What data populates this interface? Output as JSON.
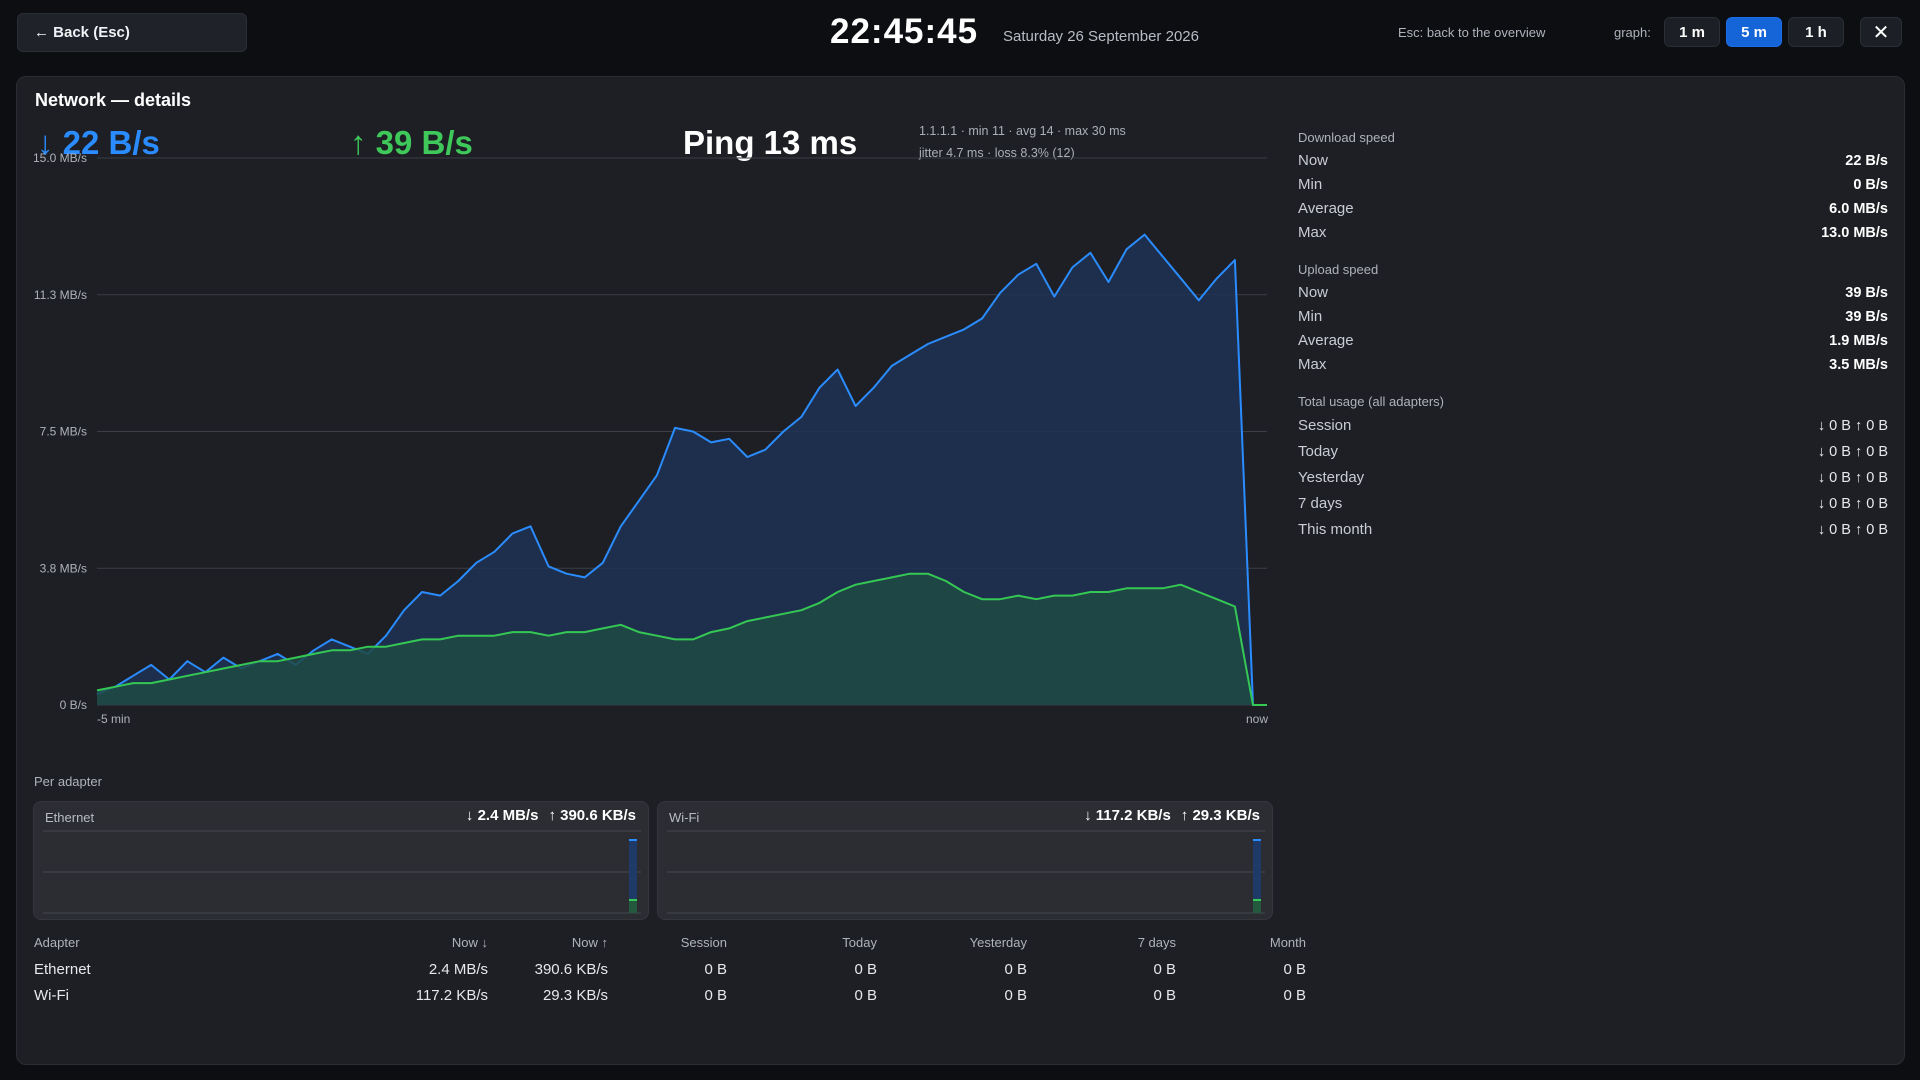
{
  "topbar": {
    "back_label": "← Back (Esc)",
    "clock": "22:45:45",
    "date": "Saturday 26 September 2026",
    "esc_hint": "Esc: back to the overview",
    "graph_label": "graph:",
    "ranges": [
      "1 m",
      "5 m",
      "1 h"
    ],
    "active_range": "5 m",
    "close_label": "✕"
  },
  "panel": {
    "title": "Network — details",
    "download_now": "↓ 22 B/s",
    "upload_now": "↑ 39 B/s",
    "ping": "Ping 13 ms",
    "ping_line1": "1.1.1.1  ·  min 11 · avg 14 · max 30 ms",
    "ping_line2": "jitter 4.7 ms  ·  loss 8.3%  (12)"
  },
  "chart_data": {
    "type": "area",
    "y_tick_labels": [
      "15.0 MB/s",
      "11.3 MB/s",
      "7.5 MB/s",
      "3.8 MB/s",
      "0 B/s"
    ],
    "x_tick_labels": [
      "-5 min",
      "now"
    ],
    "ylim": [
      0,
      15.0
    ],
    "unit": "MB/s",
    "grid": true,
    "series": [
      {
        "color": "#2a8cff",
        "values": [
          0.3,
          0.5,
          0.8,
          1.1,
          0.7,
          1.2,
          0.9,
          1.3,
          1.0,
          1.2,
          1.4,
          1.1,
          1.5,
          1.8,
          1.6,
          1.4,
          1.9,
          2.6,
          3.1,
          3.0,
          3.4,
          3.9,
          4.2,
          4.7,
          4.9,
          3.8,
          3.6,
          3.5,
          3.9,
          4.9,
          5.6,
          6.3,
          7.6,
          7.5,
          7.2,
          7.3,
          6.8,
          7.0,
          7.5,
          7.9,
          8.7,
          9.2,
          8.2,
          8.7,
          9.3,
          9.6,
          9.9,
          10.1,
          10.3,
          10.6,
          11.3,
          11.8,
          12.1,
          11.2,
          12.0,
          12.4,
          11.6,
          12.5,
          12.9,
          12.3,
          11.7,
          11.1,
          11.7,
          12.2,
          0.0
        ],
        "fill": "#1d3254"
      },
      {
        "color": "#35c854",
        "values": [
          0.4,
          0.5,
          0.6,
          0.6,
          0.7,
          0.8,
          0.9,
          1.0,
          1.1,
          1.2,
          1.2,
          1.3,
          1.4,
          1.5,
          1.5,
          1.6,
          1.6,
          1.7,
          1.8,
          1.8,
          1.9,
          1.9,
          1.9,
          2.0,
          2.0,
          1.9,
          2.0,
          2.0,
          2.1,
          2.2,
          2.0,
          1.9,
          1.8,
          1.8,
          2.0,
          2.1,
          2.3,
          2.4,
          2.5,
          2.6,
          2.8,
          3.1,
          3.3,
          3.4,
          3.5,
          3.6,
          3.6,
          3.4,
          3.1,
          2.9,
          2.9,
          3.0,
          2.9,
          3.0,
          3.0,
          3.1,
          3.1,
          3.2,
          3.2,
          3.2,
          3.3,
          3.1,
          2.9,
          2.7,
          0.0
        ],
        "fill": "#1f4a44"
      }
    ]
  },
  "stats": {
    "download": {
      "title": "Download speed",
      "rows": [
        {
          "label": "Now",
          "value": "22 B/s"
        },
        {
          "label": "Min",
          "value": "0 B/s"
        },
        {
          "label": "Average",
          "value": "6.0 MB/s"
        },
        {
          "label": "Max",
          "value": "13.0 MB/s"
        }
      ]
    },
    "upload": {
      "title": "Upload speed",
      "rows": [
        {
          "label": "Now",
          "value": "39 B/s"
        },
        {
          "label": "Min",
          "value": "39 B/s"
        },
        {
          "label": "Average",
          "value": "1.9 MB/s"
        },
        {
          "label": "Max",
          "value": "3.5 MB/s"
        }
      ]
    },
    "usage": {
      "title": "Total usage (all adapters)",
      "rows": [
        {
          "label": "Session",
          "value": "↓ 0 B   ↑ 0 B"
        },
        {
          "label": "Today",
          "value": "↓ 0 B   ↑ 0 B"
        },
        {
          "label": "Yesterday",
          "value": "↓ 0 B   ↑ 0 B"
        },
        {
          "label": "7 days",
          "value": "↓ 0 B   ↑ 0 B"
        },
        {
          "label": "This month",
          "value": "↓ 0 B   ↑ 0 B"
        }
      ]
    }
  },
  "per_adapter": {
    "label": "Per adapter",
    "cards": [
      {
        "name": "Ethernet",
        "down": "↓ 2.4 MB/s",
        "up": "↑ 390.6 KB/s"
      },
      {
        "name": "Wi-Fi",
        "down": "↓ 117.2 KB/s",
        "up": "↑ 29.3 KB/s"
      }
    ]
  },
  "adapter_table": {
    "headers": [
      "Adapter",
      "Now ↓",
      "Now ↑",
      "Session",
      "Today",
      "Yesterday",
      "7 days",
      "Month"
    ],
    "rows": [
      [
        "Ethernet",
        "2.4 MB/s",
        "390.6 KB/s",
        "0 B",
        "0 B",
        "0 B",
        "0 B",
        "0 B"
      ],
      [
        "Wi-Fi",
        "117.2 KB/s",
        "29.3 KB/s",
        "0 B",
        "0 B",
        "0 B",
        "0 B",
        "0 B"
      ]
    ]
  }
}
